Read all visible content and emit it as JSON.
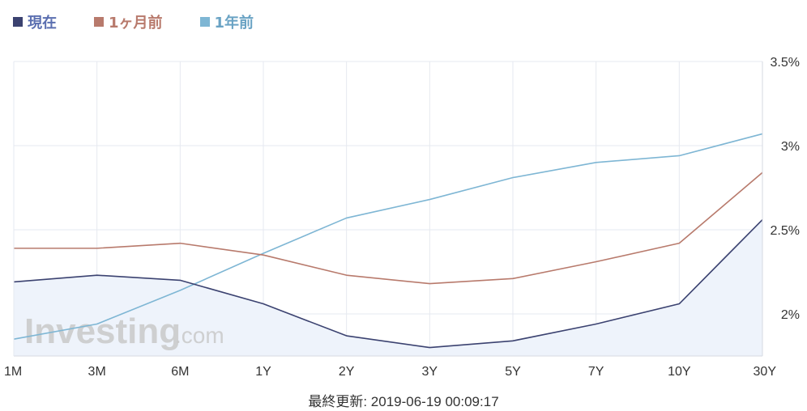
{
  "legend": [
    {
      "label": "現在",
      "color": "#3b4270",
      "text_color": "#5b6fb0"
    },
    {
      "label": "1ヶ月前",
      "color": "#b87a6c",
      "text_color": "#b87a6c"
    },
    {
      "label": "1年前",
      "color": "#7eb6d4",
      "text_color": "#6aa3c4"
    }
  ],
  "footer": {
    "updated": "最終更新: 2019-06-19 00:09:17"
  },
  "watermark": {
    "brand": "Investing",
    "suffix": ".com"
  },
  "chart_data": {
    "type": "line",
    "categories": [
      "1M",
      "3M",
      "6M",
      "1Y",
      "2Y",
      "3Y",
      "5Y",
      "7Y",
      "10Y",
      "30Y"
    ],
    "ylim": [
      1.75,
      3.5
    ],
    "yticks": [
      {
        "value": 2.0,
        "label": "2%"
      },
      {
        "value": 2.5,
        "label": "2.5%"
      },
      {
        "value": 3.0,
        "label": "3%"
      },
      {
        "value": 3.5,
        "label": "3.5%"
      }
    ],
    "y_axis_position": "right",
    "grid": true,
    "series": [
      {
        "name": "現在",
        "color": "#3b4270",
        "fill": "#eef3fb",
        "values": [
          2.19,
          2.23,
          2.2,
          2.06,
          1.87,
          1.8,
          1.84,
          1.94,
          2.06,
          2.56
        ]
      },
      {
        "name": "1ヶ月前",
        "color": "#b87a6c",
        "values": [
          2.39,
          2.39,
          2.42,
          2.35,
          2.23,
          2.18,
          2.21,
          2.31,
          2.42,
          2.84
        ]
      },
      {
        "name": "1年前",
        "color": "#7eb6d4",
        "values": [
          1.85,
          1.94,
          2.14,
          2.36,
          2.57,
          2.68,
          2.81,
          2.9,
          2.94,
          3.07
        ]
      }
    ]
  }
}
